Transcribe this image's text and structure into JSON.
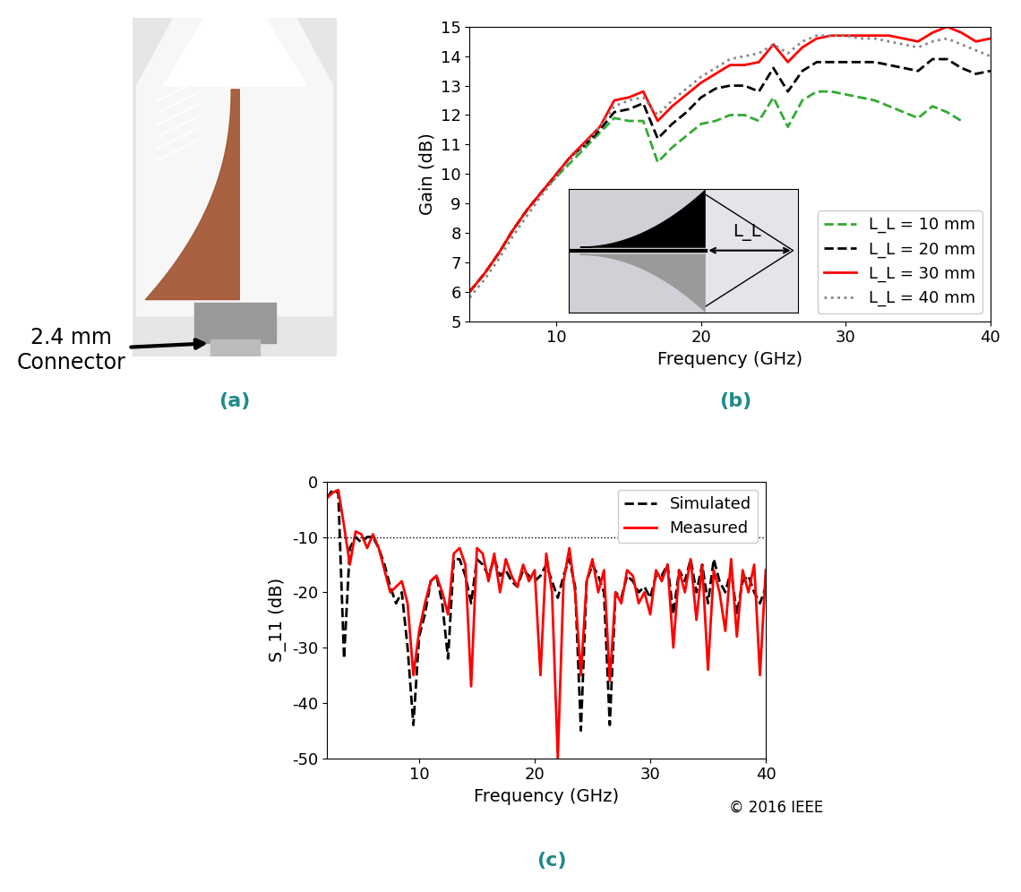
{
  "photo": {
    "label": "2.4 mm\nConnector",
    "panel": "(a)"
  },
  "chart_data": [
    {
      "type": "line",
      "panel": "(b)",
      "x_label": "Frequency (GHz)",
      "y_label": "Gain (dB)",
      "annotations": [
        "L_L"
      ],
      "x": [
        4,
        5,
        6,
        7,
        8,
        9,
        10,
        11,
        12,
        13,
        14,
        15,
        16,
        17,
        18,
        19,
        20,
        21,
        22,
        23,
        24,
        25,
        26,
        27,
        28,
        29,
        30,
        31,
        32,
        33,
        34,
        35,
        36,
        37,
        38,
        39,
        40
      ],
      "xlim": [
        4,
        40
      ],
      "xticks": [
        10,
        20,
        30,
        40
      ],
      "ylim": [
        5,
        15
      ],
      "yticks": [
        5,
        6,
        7,
        8,
        9,
        10,
        11,
        12,
        13,
        14,
        15
      ],
      "grid": false,
      "legend": "lower right",
      "series": [
        {
          "name": "L_L = 10 mm",
          "color": "#33aa33",
          "line_style": "dashed",
          "values": [
            6.0,
            6.6,
            7.3,
            8.1,
            8.8,
            9.4,
            9.9,
            10.4,
            10.9,
            11.4,
            11.9,
            11.8,
            11.8,
            10.4,
            10.9,
            11.3,
            11.7,
            11.8,
            12.0,
            12.0,
            11.8,
            12.6,
            11.6,
            12.5,
            12.8,
            12.8,
            12.7,
            12.6,
            12.5,
            12.3,
            12.1,
            11.9,
            12.3,
            12.1,
            11.8,
            null,
            null
          ]
        },
        {
          "name": "L_L = 20 mm",
          "color": "#000000",
          "line_style": "dashed",
          "values": [
            6.0,
            6.6,
            7.3,
            8.1,
            8.8,
            9.4,
            10.0,
            10.6,
            11.0,
            11.5,
            12.1,
            12.2,
            12.4,
            11.2,
            11.7,
            12.1,
            12.6,
            12.9,
            13.0,
            13.0,
            12.8,
            13.6,
            12.8,
            13.5,
            13.8,
            13.8,
            13.8,
            13.8,
            13.8,
            13.7,
            13.6,
            13.5,
            13.9,
            13.9,
            13.6,
            13.4,
            13.5
          ]
        },
        {
          "name": "L_L = 30 mm",
          "color": "#ff0000",
          "line_style": "solid",
          "values": [
            6.0,
            6.6,
            7.3,
            8.1,
            8.8,
            9.4,
            10.0,
            10.6,
            11.1,
            11.6,
            12.5,
            12.6,
            12.8,
            11.8,
            12.3,
            12.7,
            13.1,
            13.4,
            13.7,
            13.7,
            13.8,
            14.4,
            13.8,
            14.3,
            14.6,
            14.7,
            14.7,
            14.7,
            14.7,
            14.7,
            14.6,
            14.5,
            14.8,
            15.0,
            14.8,
            14.5,
            14.6
          ]
        },
        {
          "name": "L_L = 40 mm",
          "color": "#888888",
          "line_style": "dotted",
          "values": [
            5.8,
            6.4,
            7.1,
            7.9,
            8.6,
            9.3,
            9.9,
            10.5,
            11.0,
            11.6,
            12.3,
            12.5,
            12.6,
            12.0,
            12.5,
            12.9,
            13.3,
            13.6,
            13.9,
            14.0,
            14.1,
            14.4,
            14.1,
            14.5,
            14.7,
            14.7,
            14.7,
            14.6,
            14.6,
            14.5,
            14.4,
            14.3,
            14.5,
            14.6,
            14.4,
            14.2,
            14.0
          ]
        }
      ]
    },
    {
      "type": "line",
      "panel": "(c)",
      "x_label": "Frequency (GHz)",
      "y_label": "S_11 (dB)",
      "annotations": [
        "© 2016 IEEE"
      ],
      "reference_line": -10,
      "x": [
        2,
        2.5,
        3,
        3.5,
        4,
        4.5,
        5,
        5.5,
        6,
        6.5,
        7,
        7.5,
        8,
        8.5,
        9,
        9.5,
        10,
        10.5,
        11,
        11.5,
        12,
        12.5,
        13,
        13.5,
        14,
        14.5,
        15,
        15.5,
        16,
        16.5,
        17,
        17.5,
        18,
        18.5,
        19,
        19.5,
        20,
        20.5,
        21,
        21.5,
        22,
        22.5,
        23,
        23.5,
        24,
        24.5,
        25,
        25.5,
        26,
        26.5,
        27,
        27.5,
        28,
        28.5,
        29,
        29.5,
        30,
        30.5,
        31,
        31.5,
        32,
        32.5,
        33,
        33.5,
        34,
        34.5,
        35,
        35.5,
        36,
        36.5,
        37,
        37.5,
        38,
        38.5,
        39,
        39.5,
        40
      ],
      "xlim": [
        2,
        40
      ],
      "xticks": [
        10,
        20,
        30,
        40
      ],
      "ylim": [
        -50,
        0
      ],
      "yticks": [
        -50,
        -40,
        -30,
        -20,
        -10,
        0
      ],
      "grid": false,
      "legend": "upper right",
      "series": [
        {
          "name": "Simulated",
          "color": "#000000",
          "line_style": "dashed",
          "values": [
            -3,
            -1.5,
            -2,
            -32,
            -12,
            -10,
            -11,
            -10,
            -10,
            -12,
            -15,
            -19,
            -22,
            -20,
            -30,
            -44,
            -28,
            -24,
            -18,
            -17,
            -22,
            -32,
            -14,
            -14,
            -17,
            -22,
            -14,
            -15,
            -17,
            -14,
            -17,
            -16,
            -18,
            -19,
            -16,
            -17,
            -18,
            -17,
            -15,
            -18,
            -21,
            -17,
            -14,
            -19,
            -45,
            -18,
            -15,
            -17,
            -20,
            -44,
            -20,
            -21,
            -17,
            -18,
            -20,
            -19,
            -21,
            -17,
            -17,
            -15,
            -24,
            -16,
            -18,
            -14,
            -20,
            -15,
            -22,
            -14,
            -18,
            -20,
            -16,
            -24,
            -18,
            -17,
            -20,
            -22,
            -19
          ]
        },
        {
          "name": "Measured",
          "color": "#ff0000",
          "line_style": "solid",
          "values": [
            -3,
            -2,
            -1.5,
            -8,
            -15,
            -9,
            -9.5,
            -12,
            -9.5,
            -12,
            -16,
            -20,
            -19,
            -18,
            -22,
            -35,
            -27,
            -22,
            -18,
            -17,
            -20,
            -24,
            -13,
            -12,
            -15,
            -37,
            -12,
            -13,
            -18,
            -13,
            -20,
            -14,
            -17,
            -19,
            -15,
            -18,
            -16,
            -35,
            -13,
            -20,
            -50,
            -18,
            -12,
            -20,
            -35,
            -18,
            -14,
            -20,
            -16,
            -36,
            -20,
            -22,
            -16,
            -17,
            -22,
            -20,
            -24,
            -16,
            -18,
            -15,
            -30,
            -16,
            -20,
            -14,
            -25,
            -15,
            -34,
            -16,
            -20,
            -27,
            -14,
            -28,
            -16,
            -20,
            -15,
            -35,
            -16
          ]
        }
      ]
    }
  ]
}
